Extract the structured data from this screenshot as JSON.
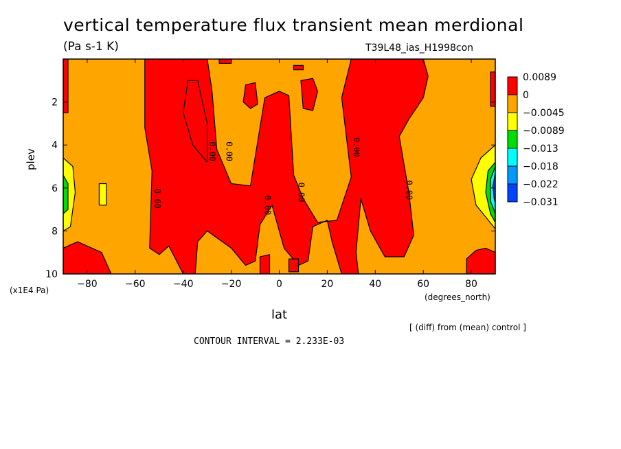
{
  "figure": {
    "title": "vertical temperature flux transient mean merdional",
    "units": "(Pa s-1 K)",
    "run_label": "T39L48_ias_H1998con",
    "y_units": "(x1E4 Pa)",
    "x_units": "(degrees_north)",
    "diff_note": "[ (diff) from (mean) control ]",
    "contour_interval": "CONTOUR INTERVAL = 2.233E-03"
  },
  "chart_data": {
    "type": "heatmap",
    "xlabel": "lat",
    "ylabel": "plev",
    "xlim": [
      -90,
      90
    ],
    "ylim": [
      10,
      0
    ],
    "x_ticks": [
      -80,
      -60,
      -40,
      -20,
      0,
      20,
      40,
      60,
      80
    ],
    "y_ticks": [
      2,
      4,
      6,
      8,
      10
    ],
    "legend": {
      "placement": "right",
      "levels": [
        "0.0089",
        "0",
        "-0.0045",
        "-0.0089",
        "-0.013",
        "-0.018",
        "-0.022",
        "-0.031"
      ],
      "colors": [
        "#ff0000",
        "#ffa500",
        "#ffff00",
        "#00dd00",
        "#00ffff",
        "#0099ff",
        "#0044ff"
      ]
    },
    "contour_labels": [
      {
        "text": "0.00",
        "lat": -52,
        "plev": 6.5
      },
      {
        "text": "0.00",
        "lat": -29,
        "plev": 4.3
      },
      {
        "text": "0.00",
        "lat": -22,
        "plev": 4.3
      },
      {
        "text": "0.00",
        "lat": -6,
        "plev": 6.8
      },
      {
        "text": "0.00",
        "lat": 8,
        "plev": 6.2
      },
      {
        "text": "0.00",
        "lat": 31,
        "plev": 4.1
      },
      {
        "text": "0.00",
        "lat": 53,
        "plev": 6.1
      }
    ],
    "regions": [
      {
        "level": "red",
        "polygon": [
          [
            -90,
            0
          ],
          [
            -88,
            0
          ],
          [
            -88,
            2.5
          ],
          [
            -90,
            2.5
          ]
        ]
      },
      {
        "level": "red",
        "polygon": [
          [
            -90,
            8.8
          ],
          [
            -84,
            8.5
          ],
          [
            -74,
            9.0
          ],
          [
            -70,
            10
          ],
          [
            -90,
            10
          ]
        ]
      },
      {
        "level": "red",
        "polygon": [
          [
            -55,
            0
          ],
          [
            -30,
            0
          ],
          [
            -28,
            1.5
          ],
          [
            -26,
            4.2
          ],
          [
            -20,
            5.8
          ],
          [
            -12,
            5.9
          ],
          [
            -6,
            1.8
          ],
          [
            0,
            1.5
          ],
          [
            4,
            1.7
          ],
          [
            6,
            5.4
          ],
          [
            10,
            6.5
          ],
          [
            16,
            7.6
          ],
          [
            24,
            7.5
          ],
          [
            30,
            5.5
          ],
          [
            26,
            1.8
          ],
          [
            30,
            0
          ],
          [
            50,
            0
          ],
          [
            60,
            0
          ],
          [
            62,
            0.8
          ],
          [
            60,
            1.8
          ],
          [
            54,
            2.8
          ],
          [
            50,
            3.6
          ],
          [
            54,
            6.2
          ],
          [
            56,
            8.2
          ],
          [
            52,
            9.2
          ],
          [
            44,
            9.2
          ],
          [
            38,
            8.0
          ],
          [
            34,
            6.5
          ],
          [
            32,
            9.0
          ],
          [
            33,
            10
          ],
          [
            26,
            10
          ],
          [
            22,
            8.5
          ],
          [
            20,
            7.5
          ],
          [
            14,
            7.8
          ],
          [
            12,
            9.4
          ],
          [
            8,
            9.6
          ],
          [
            2,
            8.8
          ],
          [
            -3,
            6.8
          ],
          [
            -8,
            7.7
          ],
          [
            -10,
            9.4
          ],
          [
            -14,
            9.6
          ],
          [
            -20,
            8.8
          ],
          [
            -30,
            8.0
          ],
          [
            -34,
            8.5
          ],
          [
            -35,
            10
          ],
          [
            -40,
            10
          ],
          [
            -46,
            8.7
          ],
          [
            -50,
            9.1
          ],
          [
            -54,
            8.8
          ],
          [
            -53,
            5.2
          ],
          [
            -56,
            3.2
          ],
          [
            -56,
            0
          ]
        ]
      },
      {
        "level": "red",
        "polygon": [
          [
            -38,
            1.0
          ],
          [
            -34,
            1.0
          ],
          [
            -30,
            3.0
          ],
          [
            -30,
            4.8
          ],
          [
            -36,
            4.0
          ],
          [
            -40,
            2.5
          ]
        ]
      },
      {
        "level": "red",
        "polygon": [
          [
            -14,
            1.2
          ],
          [
            -10,
            1.1
          ],
          [
            -9,
            2.1
          ],
          [
            -12,
            2.3
          ],
          [
            -15,
            2.0
          ]
        ]
      },
      {
        "level": "red",
        "polygon": [
          [
            9,
            1.0
          ],
          [
            14,
            0.9
          ],
          [
            16,
            1.5
          ],
          [
            14,
            2.4
          ],
          [
            10,
            2.3
          ]
        ]
      },
      {
        "level": "red",
        "polygon": [
          [
            -8,
            9.2
          ],
          [
            -4,
            9.1
          ],
          [
            -4,
            10
          ],
          [
            -8,
            10
          ]
        ]
      },
      {
        "level": "red",
        "polygon": [
          [
            4,
            9.3
          ],
          [
            8,
            9.3
          ],
          [
            8,
            9.9
          ],
          [
            4,
            9.9
          ]
        ]
      },
      {
        "level": "red",
        "polygon": [
          [
            -25,
            0
          ],
          [
            -20,
            0
          ],
          [
            -20,
            0.2
          ],
          [
            -25,
            0.2
          ]
        ]
      },
      {
        "level": "red",
        "polygon": [
          [
            6,
            0.3
          ],
          [
            10,
            0.3
          ],
          [
            10,
            0.5
          ],
          [
            6,
            0.5
          ]
        ]
      },
      {
        "level": "red",
        "polygon": [
          [
            88,
            0.6
          ],
          [
            90,
            0.6
          ],
          [
            90,
            2.2
          ],
          [
            88,
            2.2
          ]
        ]
      },
      {
        "level": "red",
        "polygon": [
          [
            78,
            9.3
          ],
          [
            82,
            8.9
          ],
          [
            86,
            8.8
          ],
          [
            90,
            9.0
          ],
          [
            90,
            10
          ],
          [
            78,
            10
          ]
        ]
      },
      {
        "level": "yellow",
        "polygon": [
          [
            -90,
            4.6
          ],
          [
            -86,
            5.0
          ],
          [
            -85,
            6.2
          ],
          [
            -87,
            7.8
          ],
          [
            -90,
            8.0
          ]
        ]
      },
      {
        "level": "yellow",
        "polygon": [
          [
            -75,
            5.8
          ],
          [
            -72,
            5.8
          ],
          [
            -72,
            6.8
          ],
          [
            -75,
            6.8
          ]
        ]
      },
      {
        "level": "yellow",
        "polygon": [
          [
            90,
            4.0
          ],
          [
            84,
            4.6
          ],
          [
            80,
            5.6
          ],
          [
            82,
            6.8
          ],
          [
            90,
            7.9
          ]
        ]
      },
      {
        "level": "green",
        "polygon": [
          [
            -90,
            5.4
          ],
          [
            -88,
            5.8
          ],
          [
            -88,
            7.0
          ],
          [
            -90,
            7.2
          ]
        ]
      },
      {
        "level": "green",
        "polygon": [
          [
            90,
            4.8
          ],
          [
            87,
            5.2
          ],
          [
            86,
            6.2
          ],
          [
            88,
            7.2
          ],
          [
            90,
            7.6
          ]
        ]
      },
      {
        "level": "cyan",
        "polygon": [
          [
            90,
            5.0
          ],
          [
            88,
            5.6
          ],
          [
            88,
            6.6
          ],
          [
            90,
            7.2
          ]
        ]
      },
      {
        "level": "blue",
        "polygon": [
          [
            90,
            5.3
          ],
          [
            89,
            5.9
          ],
          [
            89.5,
            6.5
          ],
          [
            90,
            6.7
          ]
        ]
      }
    ]
  }
}
